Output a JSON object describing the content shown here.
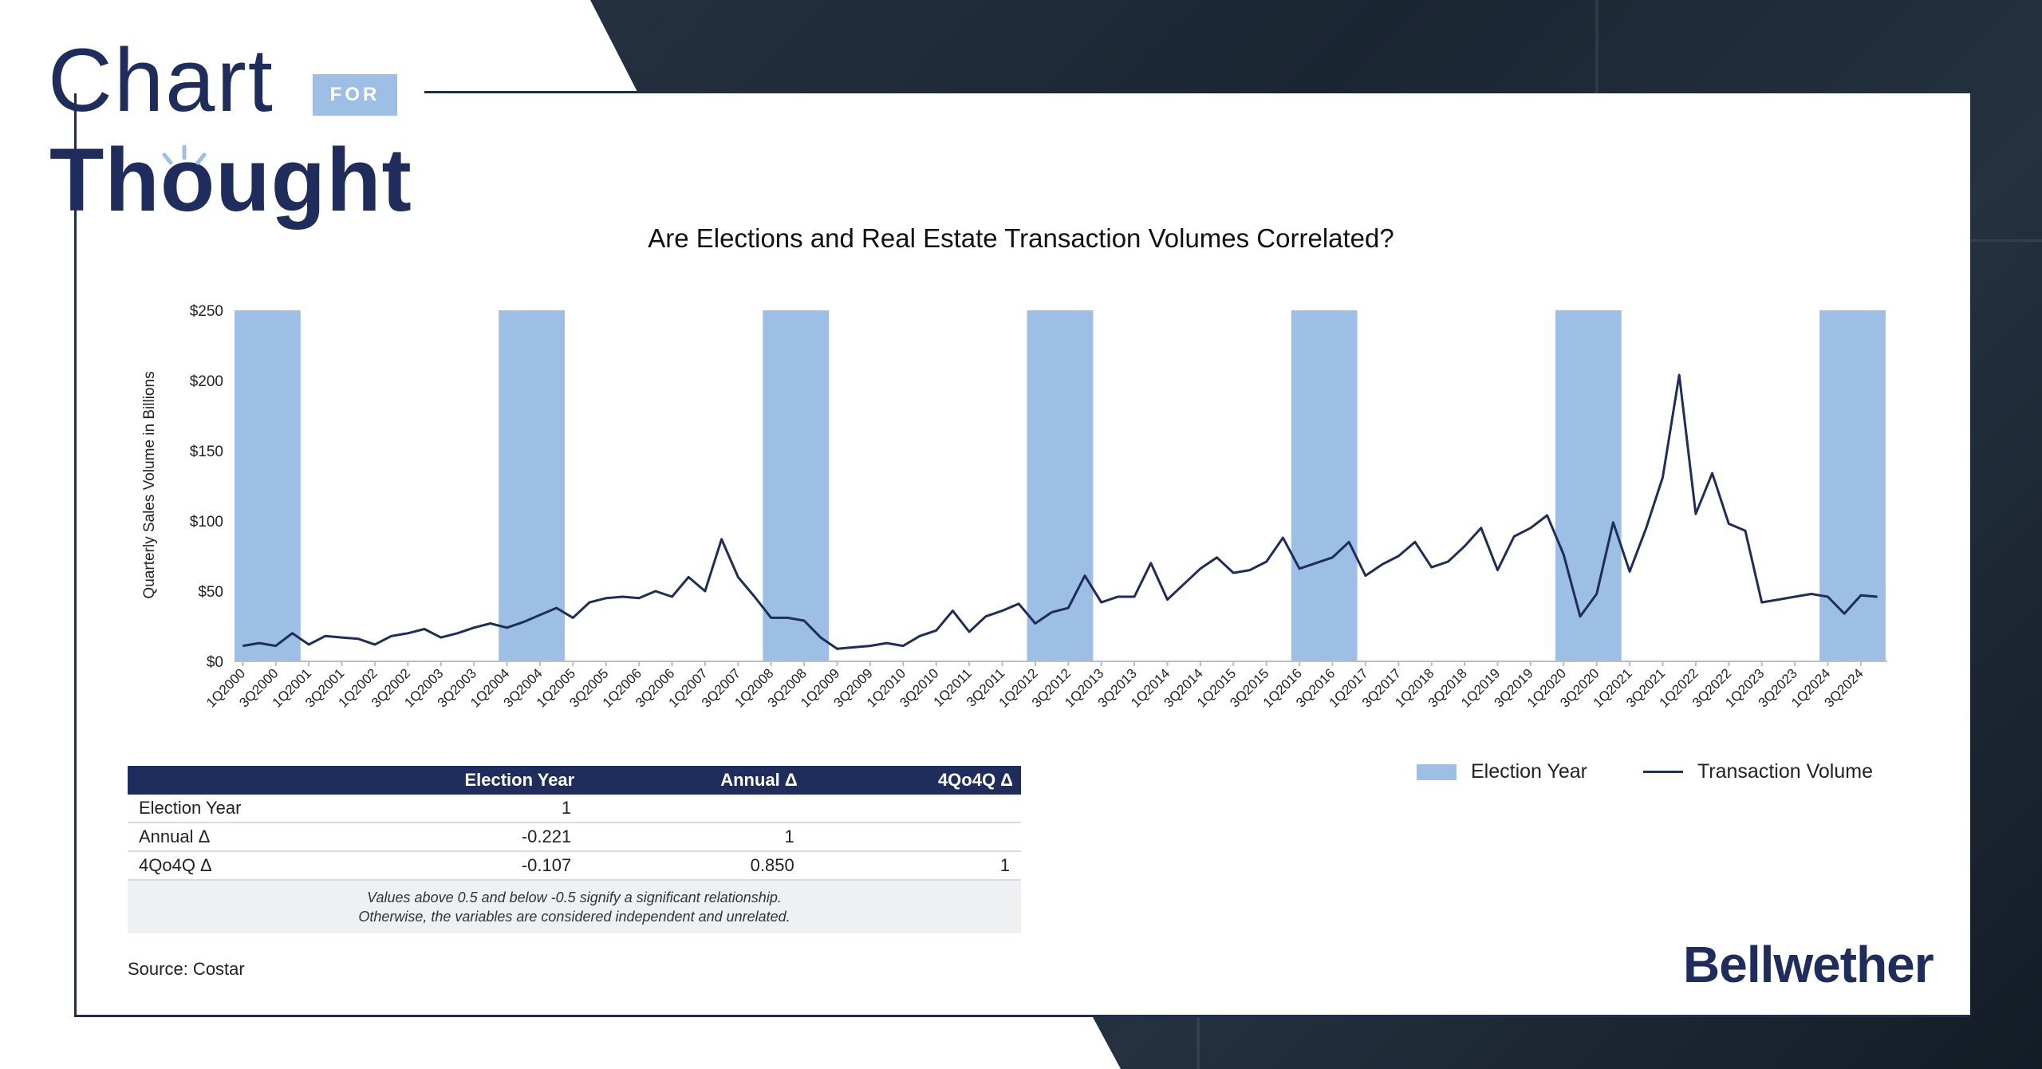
{
  "brand": {
    "logo_chart": "Chart",
    "logo_for": "FOR",
    "logo_thought": "Thought",
    "company": "Bellwether"
  },
  "colors": {
    "navy": "#1f2d5c",
    "election_fill": "#9dbfe6",
    "background_dark": "#1b2633"
  },
  "chart_data": {
    "type": "line",
    "title": "Are Elections and Real Estate Transaction Volumes Correlated?",
    "ylabel": "Quarterly Sales Volume in Billions",
    "xlabel": "",
    "ylim": [
      0,
      250
    ],
    "yticks": [
      "$0",
      "$50",
      "$100",
      "$150",
      "$200",
      "$250"
    ],
    "x_tick_labels": [
      "1Q2000",
      "3Q2000",
      "1Q2001",
      "3Q2001",
      "1Q2002",
      "3Q2002",
      "1Q2003",
      "3Q2003",
      "1Q2004",
      "3Q2004",
      "1Q2005",
      "3Q2005",
      "1Q2006",
      "3Q2006",
      "1Q2007",
      "3Q2007",
      "1Q2008",
      "3Q2008",
      "1Q2009",
      "3Q2009",
      "1Q2010",
      "3Q2010",
      "1Q2011",
      "3Q2011",
      "1Q2012",
      "3Q2012",
      "1Q2013",
      "3Q2013",
      "1Q2014",
      "3Q2014",
      "1Q2015",
      "3Q2015",
      "1Q2016",
      "3Q2016",
      "1Q2017",
      "3Q2017",
      "1Q2018",
      "3Q2018",
      "1Q2019",
      "3Q2019",
      "1Q2020",
      "3Q2020",
      "1Q2021",
      "3Q2021",
      "1Q2022",
      "3Q2022",
      "1Q2023",
      "3Q2023",
      "1Q2024",
      "3Q2024"
    ],
    "election_years": [
      2000,
      2004,
      2008,
      2012,
      2016,
      2020,
      2024
    ],
    "series": [
      {
        "name": "Transaction Volume",
        "values": [
          11,
          13,
          11,
          20,
          12,
          18,
          17,
          16,
          12,
          18,
          20,
          23,
          17,
          20,
          24,
          27,
          24,
          28,
          33,
          38,
          31,
          42,
          45,
          46,
          45,
          50,
          46,
          60,
          50,
          87,
          60,
          46,
          31,
          31,
          29,
          17,
          9,
          10,
          11,
          13,
          11,
          18,
          22,
          36,
          21,
          32,
          36,
          41,
          27,
          35,
          38,
          61,
          42,
          46,
          46,
          70,
          44,
          55,
          66,
          74,
          63,
          65,
          71,
          88,
          66,
          70,
          74,
          85,
          61,
          69,
          75,
          85,
          67,
          71,
          82,
          95,
          65,
          89,
          95,
          104,
          76,
          32,
          48,
          99,
          64,
          95,
          131,
          204,
          105,
          134,
          98,
          93,
          42,
          44,
          46,
          48,
          46,
          34,
          47,
          46
        ]
      }
    ],
    "legend": [
      "Election Year",
      "Transaction Volume"
    ],
    "legend_position": "bottom-right",
    "grid": false
  },
  "table": {
    "headers": [
      "",
      "Election Year",
      "Annual Δ",
      "4Qo4Q Δ"
    ],
    "rows": [
      [
        "Election Year",
        "1",
        "",
        ""
      ],
      [
        "Annual Δ",
        "-0.221",
        "1",
        ""
      ],
      [
        "4Qo4Q Δ",
        "-0.107",
        "0.850",
        "1"
      ]
    ],
    "note_line1": "Values above 0.5 and below -0.5 signify a significant relationship.",
    "note_line2": "Otherwise, the variables are considered independent and unrelated."
  },
  "source": "Source: Costar"
}
